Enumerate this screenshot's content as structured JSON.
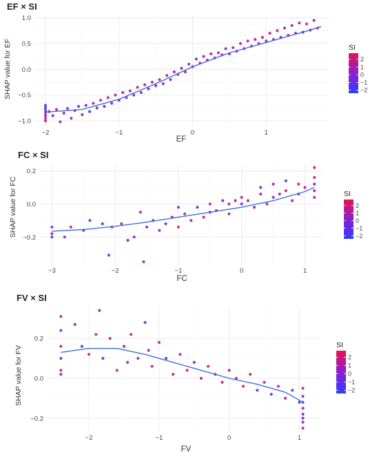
{
  "figure": {
    "colorbar_colors": [
      "#e8134f",
      "#8a1fd1",
      "#2f3cff"
    ],
    "smooth_color": "#3b6fe0",
    "grid_color": "#ebebeb"
  },
  "chart_data": [
    {
      "type": "scatter",
      "title": "EF × SI",
      "xlabel": "EF",
      "ylabel": "SHAP value for EF",
      "xlim": [
        -2.15,
        1.85
      ],
      "ylim": [
        -1.12,
        1.05
      ],
      "xticks": [
        -2,
        -1,
        0,
        1
      ],
      "xtick_labels": [
        "−2",
        "−1",
        "0",
        "1"
      ],
      "yticks": [
        -1.0,
        -0.5,
        0.0,
        0.5,
        1.0
      ],
      "ytick_labels": [
        "−1.0",
        "−0.5",
        "0.0",
        "0.5",
        "1.0"
      ],
      "grid": true,
      "legend": {
        "title": "SI",
        "position": "right",
        "ticks": [
          2,
          1,
          0,
          -1,
          -2
        ],
        "tick_labels": [
          "2",
          "1",
          "0",
          "−1",
          "−2"
        ],
        "range": [
          -2.4,
          2.8
        ]
      },
      "series": [
        {
          "x": [
            -2,
            -2,
            -2,
            -2,
            -2,
            -2,
            -2,
            -1.95,
            -1.9,
            -1.85,
            -1.8,
            -1.75,
            -1.7,
            -1.65,
            -1.6,
            -1.55,
            -1.5,
            -1.45,
            -1.4,
            -1.35,
            -1.3,
            -1.25,
            -1.2,
            -1.15,
            -1.1,
            -1.05,
            -1.0,
            -0.95,
            -0.9,
            -0.85,
            -0.8,
            -0.75,
            -0.7,
            -0.65,
            -0.6,
            -0.55,
            -0.5,
            -0.45,
            -0.4,
            -0.35,
            -0.3,
            -0.25,
            -0.2,
            -0.15,
            -0.1,
            -0.05,
            0.0,
            0.05,
            0.1,
            0.15,
            0.2,
            0.25,
            0.3,
            0.35,
            0.4,
            0.45,
            0.5,
            0.55,
            0.6,
            0.65,
            0.7,
            0.75,
            0.8,
            0.85,
            0.9,
            0.95,
            1.0,
            1.05,
            1.1,
            1.15,
            1.2,
            1.25,
            1.3,
            1.35,
            1.4,
            1.45,
            1.5,
            1.55,
            1.6,
            1.65,
            1.7
          ],
          "y": [
            -0.7,
            -0.75,
            -0.8,
            -0.85,
            -0.9,
            -0.95,
            -1.0,
            -0.82,
            -0.9,
            -0.78,
            -1.02,
            -0.85,
            -0.76,
            -0.95,
            -0.8,
            -0.72,
            -0.88,
            -0.7,
            -0.82,
            -0.66,
            -0.75,
            -0.6,
            -0.72,
            -0.55,
            -0.66,
            -0.5,
            -0.6,
            -0.45,
            -0.55,
            -0.42,
            -0.5,
            -0.35,
            -0.45,
            -0.3,
            -0.38,
            -0.25,
            -0.32,
            -0.2,
            -0.28,
            -0.12,
            -0.2,
            -0.05,
            -0.1,
            0.02,
            -0.05,
            0.1,
            0.05,
            0.2,
            0.12,
            0.25,
            0.18,
            0.3,
            0.22,
            0.32,
            0.28,
            0.4,
            0.3,
            0.42,
            0.35,
            0.5,
            0.4,
            0.55,
            0.45,
            0.58,
            0.5,
            0.62,
            0.55,
            0.7,
            0.58,
            0.75,
            0.62,
            0.8,
            0.66,
            0.85,
            0.7,
            0.9,
            0.72,
            0.88,
            0.76,
            0.95,
            0.8
          ],
          "si": [
            -2,
            -1.5,
            -1,
            0,
            1,
            1.5,
            2,
            1,
            -1,
            2,
            0.5,
            -0.5,
            1.5,
            0,
            2,
            -1,
            1,
            0.5,
            -1.5,
            1.5,
            0,
            2,
            -0.5,
            1,
            0.5,
            1.5,
            -1,
            2,
            0,
            1,
            -0.5,
            1.5,
            0.5,
            2,
            -1,
            1,
            0,
            1.5,
            0.5,
            2,
            -0.5,
            1,
            1.5,
            0,
            2,
            0.5,
            1,
            -1,
            1.5,
            2,
            0,
            1,
            0.5,
            2,
            1.5,
            -0.5,
            1,
            2,
            0.5,
            1.5,
            0,
            2,
            1,
            1.5,
            -0.5,
            2,
            0.5,
            1,
            1.5,
            2,
            0,
            1,
            2,
            1.5,
            0.5,
            2,
            1,
            1.5,
            2,
            0.5,
            1
          ]
        }
      ],
      "smooth": {
        "x": [
          -2,
          -1.5,
          -1,
          -0.5,
          0,
          0.5,
          1,
          1.5,
          1.75
        ],
        "y": [
          -0.83,
          -0.78,
          -0.58,
          -0.28,
          0.05,
          0.32,
          0.52,
          0.72,
          0.83
        ]
      }
    },
    {
      "type": "scatter",
      "title": "FC × SI",
      "xlabel": "FC",
      "ylabel": "SHAP value for FC",
      "xlim": [
        -3.2,
        1.3
      ],
      "ylim": [
        -0.37,
        0.24
      ],
      "xticks": [
        -3,
        -2,
        -1,
        0,
        1
      ],
      "xtick_labels": [
        "−3",
        "−2",
        "−1",
        "0",
        "1"
      ],
      "yticks": [
        -0.2,
        0.0,
        0.2
      ],
      "ytick_labels": [
        "−0.2",
        "0.0",
        "0.2"
      ],
      "grid": true,
      "legend": {
        "title": "SI",
        "position": "right",
        "ticks": [
          2,
          1,
          0,
          -1,
          -2
        ],
        "tick_labels": [
          "2",
          "1",
          "0",
          "−1",
          "−2"
        ],
        "range": [
          -2.4,
          2.8
        ]
      },
      "series": [
        {
          "x": [
            -3,
            -3,
            -3,
            -2.8,
            -2.7,
            -2.5,
            -2.4,
            -2.2,
            -2.1,
            -2.05,
            -1.9,
            -1.8,
            -1.7,
            -1.6,
            -1.55,
            -1.5,
            -1.4,
            -1.3,
            -1.2,
            -1.1,
            -1.0,
            -1.0,
            -0.9,
            -0.8,
            -0.7,
            -0.6,
            -0.5,
            -0.5,
            -0.4,
            -0.3,
            -0.2,
            -0.2,
            -0.1,
            0.0,
            0.0,
            0.1,
            0.2,
            0.3,
            0.3,
            0.4,
            0.5,
            0.5,
            0.6,
            0.7,
            0.7,
            0.8,
            0.9,
            0.9,
            1.0,
            1.15,
            1.15,
            1.15,
            1.15,
            1.15
          ],
          "y": [
            -0.14,
            -0.18,
            -0.2,
            -0.2,
            -0.14,
            -0.16,
            -0.1,
            -0.12,
            -0.31,
            -0.14,
            -0.12,
            -0.22,
            -0.2,
            -0.05,
            -0.35,
            -0.14,
            -0.1,
            -0.16,
            -0.12,
            -0.08,
            -0.02,
            -0.14,
            -0.06,
            -0.1,
            -0.02,
            -0.08,
            0.0,
            -0.05,
            -0.04,
            0.02,
            0.0,
            -0.06,
            0.02,
            0.0,
            0.04,
            0.02,
            -0.02,
            0.06,
            0.1,
            0.0,
            0.04,
            0.12,
            0.06,
            0.08,
            0.14,
            0.02,
            0.06,
            0.12,
            0.1,
            0.04,
            0.08,
            0.12,
            0.16,
            0.22
          ],
          "si": [
            -0.5,
            1,
            -1,
            0,
            1.5,
            -1.5,
            0.5,
            -1,
            0,
            1,
            2,
            -0.5,
            0,
            1.5,
            0.5,
            -1,
            1,
            0.5,
            -1.5,
            1.5,
            0,
            2,
            1,
            0.5,
            -0.5,
            1.5,
            2,
            0,
            1,
            -1,
            2,
            1.5,
            0.5,
            -1,
            1,
            2,
            0,
            1.5,
            -0.5,
            2,
            1,
            0.5,
            1.5,
            2,
            -1,
            1,
            0.5,
            2,
            1.5,
            2.5,
            1,
            0,
            2,
            2.5
          ]
        }
      ],
      "smooth": {
        "x": [
          -3,
          -2.5,
          -2,
          -1.5,
          -1,
          -0.5,
          0,
          0.5,
          1,
          1.15
        ],
        "y": [
          -0.165,
          -0.155,
          -0.135,
          -0.11,
          -0.08,
          -0.05,
          -0.02,
          0.02,
          0.075,
          0.1
        ]
      }
    },
    {
      "type": "scatter",
      "title": "FV × SI",
      "xlabel": "FV",
      "ylabel": "SHAP value for FV",
      "xlim": [
        -2.6,
        1.3
      ],
      "ylim": [
        -0.27,
        0.36
      ],
      "xticks": [
        -2,
        -1,
        0,
        1
      ],
      "xtick_labels": [
        "−2",
        "−1",
        "0",
        "1"
      ],
      "yticks": [
        -0.2,
        0.0,
        0.2
      ],
      "ytick_labels": [
        "−0.2",
        "0.0",
        "0.2"
      ],
      "grid": true,
      "legend": {
        "title": "SI",
        "position": "right",
        "ticks": [
          2,
          1,
          0,
          -1,
          -2
        ],
        "tick_labels": [
          "2",
          "1",
          "0",
          "−1",
          "−2"
        ],
        "range": [
          -2.4,
          2.8
        ]
      },
      "series": [
        {
          "x": [
            -2.4,
            -2.4,
            -2.4,
            -2.4,
            -2.4,
            -2.4,
            -2.2,
            -2.1,
            -2.0,
            -1.9,
            -1.85,
            -1.8,
            -1.7,
            -1.6,
            -1.5,
            -1.45,
            -1.4,
            -1.3,
            -1.2,
            -1.15,
            -1.1,
            -1.0,
            -0.9,
            -0.8,
            -0.7,
            -0.6,
            -0.5,
            -0.4,
            -0.3,
            -0.2,
            -0.1,
            0.0,
            0.1,
            0.2,
            0.3,
            0.4,
            0.5,
            0.6,
            0.7,
            0.8,
            0.9,
            1.0,
            1.05,
            1.05,
            1.05,
            1.05,
            1.05,
            1.05,
            1.05,
            1.05
          ],
          "y": [
            0.31,
            0.24,
            0.16,
            0.1,
            0.04,
            0.02,
            0.27,
            0.16,
            0.12,
            0.22,
            0.34,
            0.1,
            0.2,
            0.04,
            0.16,
            0.08,
            0.22,
            0.1,
            0.28,
            0.14,
            0.06,
            0.18,
            0.1,
            0.02,
            0.12,
            0.04,
            0.08,
            0.0,
            0.06,
            0.02,
            -0.02,
            0.04,
            0.0,
            -0.04,
            0.02,
            -0.06,
            -0.02,
            -0.08,
            -0.04,
            -0.1,
            -0.06,
            -0.12,
            -0.05,
            -0.09,
            -0.12,
            -0.15,
            -0.18,
            -0.2,
            -0.22,
            -0.25
          ],
          "si": [
            1,
            0.5,
            2,
            -1,
            1.5,
            0,
            1,
            -0.5,
            2,
            1.5,
            0.5,
            -1,
            1,
            2,
            0,
            1.5,
            1,
            2,
            0.5,
            -0.5,
            1.5,
            2,
            0,
            1,
            1.5,
            2,
            0.5,
            1,
            2,
            -0.5,
            1.5,
            0,
            1,
            2,
            0.5,
            -1,
            1.5,
            0,
            2,
            1,
            0.5,
            -1.5,
            1,
            0,
            -1,
            1.5,
            -0.5,
            0.5,
            -1,
            2
          ]
        }
      ],
      "smooth": {
        "x": [
          -2.4,
          -2,
          -1.6,
          -1.2,
          -0.8,
          -0.4,
          0,
          0.4,
          0.8,
          1.05
        ],
        "y": [
          0.13,
          0.15,
          0.15,
          0.12,
          0.08,
          0.04,
          0.0,
          -0.03,
          -0.07,
          -0.12
        ]
      }
    }
  ]
}
